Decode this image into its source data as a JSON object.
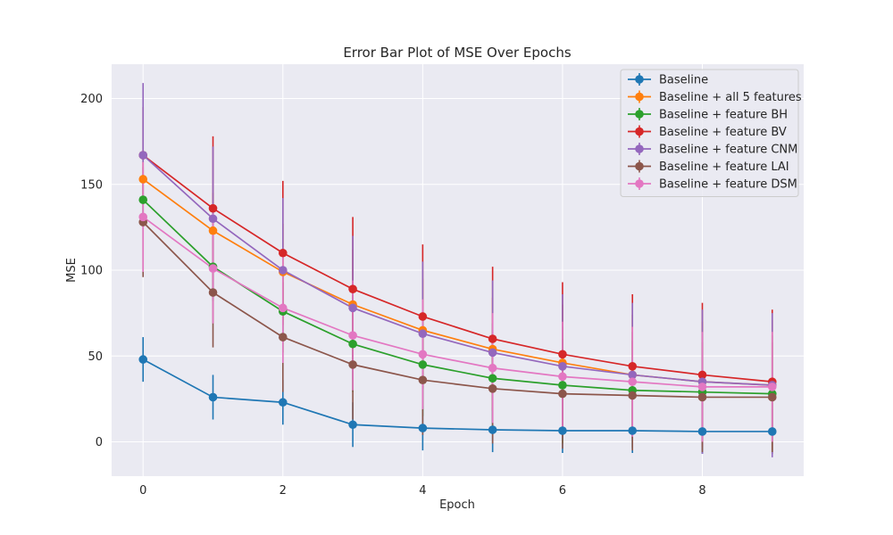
{
  "chart_data": {
    "type": "line",
    "title": "Error Bar Plot of MSE Over Epochs",
    "xlabel": "Epoch",
    "ylabel": "MSE",
    "xlim": [
      -0.45,
      9.45
    ],
    "ylim": [
      -20,
      220
    ],
    "xticks": [
      0,
      2,
      4,
      6,
      8
    ],
    "yticks": [
      0,
      50,
      100,
      150,
      200
    ],
    "grid": true,
    "legend_position": "top-right",
    "x": [
      0,
      1,
      2,
      3,
      4,
      5,
      6,
      7,
      8,
      9
    ],
    "series": [
      {
        "name": "Baseline",
        "color": "#1f77b4",
        "values": [
          48,
          26,
          23,
          10,
          8,
          7,
          6.5,
          6.5,
          6,
          6
        ],
        "errors": [
          13,
          13,
          13,
          13,
          13,
          13,
          13,
          13,
          13,
          13
        ]
      },
      {
        "name": "Baseline + all 5 features",
        "color": "#ff7f0e",
        "values": [
          153,
          123,
          99,
          80,
          65,
          54,
          46,
          39,
          35,
          33
        ],
        "errors": [
          10,
          22,
          28,
          32,
          30,
          30,
          34,
          35,
          35,
          38
        ]
      },
      {
        "name": "Baseline + feature BH",
        "color": "#2ca02c",
        "values": [
          141,
          102,
          76,
          57,
          45,
          37,
          33,
          30,
          29,
          28
        ],
        "errors": [
          10,
          20,
          24,
          28,
          30,
          32,
          34,
          34,
          34,
          34
        ]
      },
      {
        "name": "Baseline + feature BV",
        "color": "#d62728",
        "values": [
          167,
          136,
          110,
          89,
          73,
          60,
          51,
          44,
          39,
          35
        ],
        "errors": [
          28,
          42,
          42,
          42,
          42,
          42,
          42,
          42,
          42,
          42
        ]
      },
      {
        "name": "Baseline + feature CNM",
        "color": "#9467bd",
        "values": [
          167,
          130,
          100,
          78,
          63,
          52,
          44,
          39,
          35,
          33
        ],
        "errors": [
          42,
          42,
          42,
          42,
          42,
          42,
          42,
          42,
          42,
          42
        ]
      },
      {
        "name": "Baseline + feature LAI",
        "color": "#8c564b",
        "values": [
          128,
          87,
          61,
          45,
          36,
          31,
          28,
          27,
          26,
          26
        ],
        "errors": [
          32,
          32,
          32,
          32,
          32,
          32,
          32,
          32,
          32,
          32
        ]
      },
      {
        "name": "Baseline + feature DSM",
        "color": "#e377c2",
        "values": [
          131,
          101,
          78,
          62,
          51,
          43,
          38,
          35,
          32,
          32
        ],
        "errors": [
          32,
          32,
          32,
          32,
          32,
          32,
          32,
          32,
          32,
          32
        ]
      }
    ]
  }
}
